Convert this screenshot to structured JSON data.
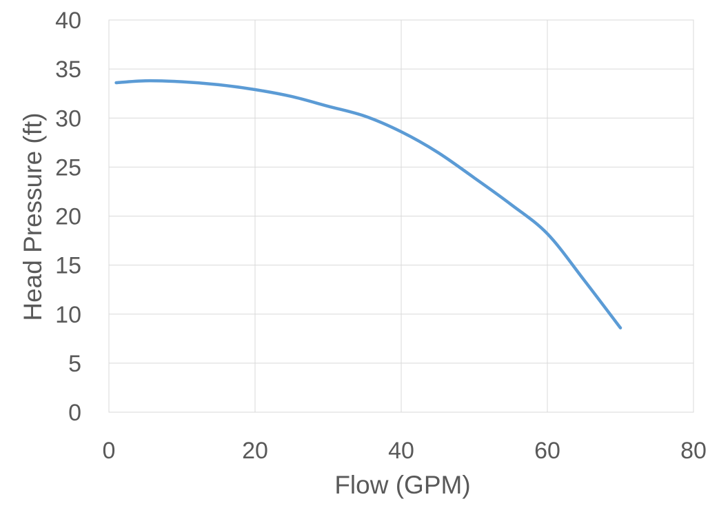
{
  "chart_data": {
    "type": "line",
    "title": "",
    "xlabel": "Flow (GPM)",
    "ylabel": "Head Pressure (ft)",
    "xlim": [
      0,
      80
    ],
    "ylim": [
      0,
      40
    ],
    "x_ticks": [
      "0",
      "20",
      "40",
      "60",
      "80"
    ],
    "y_ticks": [
      "0",
      "5",
      "10",
      "15",
      "20",
      "25",
      "30",
      "35",
      "40"
    ],
    "grid": true,
    "legend": "none",
    "series": [
      {
        "color": "#5b9bd5",
        "x": [
          1,
          5,
          10,
          15,
          20,
          25,
          30,
          35,
          40,
          45,
          50,
          55,
          60,
          65,
          70
        ],
        "y": [
          33.6,
          33.8,
          33.7,
          33.4,
          32.9,
          32.2,
          31.2,
          30.2,
          28.6,
          26.5,
          23.9,
          21.2,
          18.2,
          13.5,
          8.6
        ]
      }
    ]
  }
}
